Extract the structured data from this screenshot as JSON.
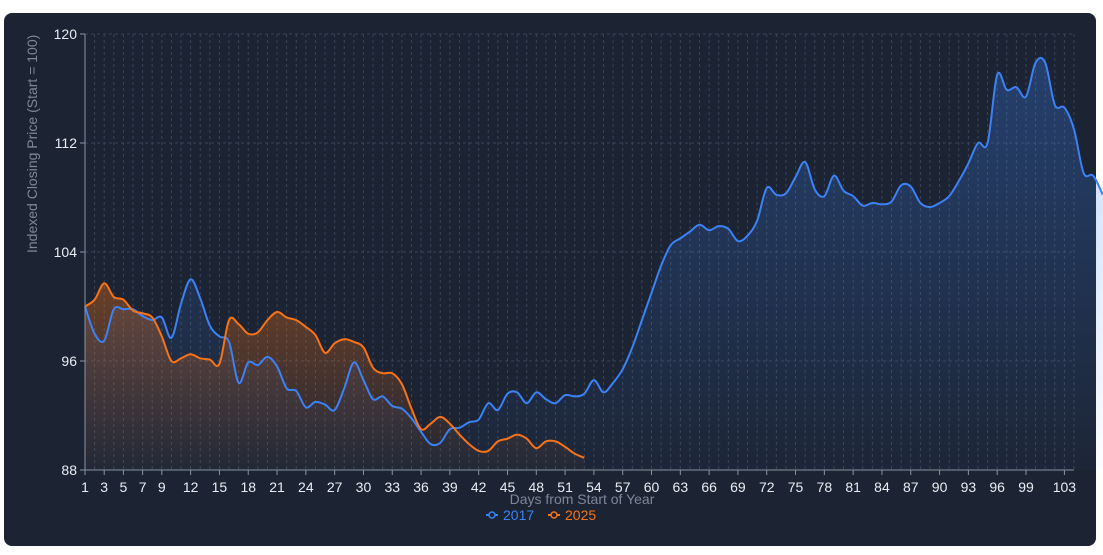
{
  "chart_data": {
    "type": "area",
    "title": "",
    "xlabel": "Days from Start of Year",
    "ylabel": "Indexed Closing Price (Start = 100)",
    "xlim": [
      1,
      104
    ],
    "ylim": [
      88,
      120
    ],
    "x_ticks": [
      "1",
      "3",
      "5",
      "7",
      "9",
      "12",
      "15",
      "18",
      "21",
      "24",
      "27",
      "30",
      "33",
      "36",
      "39",
      "42",
      "45",
      "48",
      "51",
      "54",
      "57",
      "60",
      "63",
      "66",
      "69",
      "72",
      "75",
      "78",
      "81",
      "84",
      "87",
      "90",
      "93",
      "96",
      "99",
      "103"
    ],
    "y_ticks": [
      88,
      96,
      104,
      112,
      120
    ],
    "grid": true,
    "legend": "bottom-center",
    "series": [
      {
        "name": "2017",
        "color": "#3b82f6",
        "values": [
          100.0,
          98.0,
          97.5,
          99.8,
          99.8,
          99.8,
          99.3,
          99.0,
          99.2,
          97.7,
          100.2,
          102.0,
          100.6,
          98.6,
          97.8,
          97.4,
          94.4,
          95.9,
          95.7,
          96.3,
          95.6,
          94.0,
          93.8,
          92.6,
          93.0,
          92.8,
          92.4,
          94.0,
          95.9,
          94.6,
          93.2,
          93.4,
          92.7,
          92.5,
          91.8,
          90.8,
          89.9,
          90.0,
          91.0,
          91.1,
          91.5,
          91.7,
          92.9,
          92.4,
          93.6,
          93.7,
          92.9,
          93.7,
          93.2,
          92.9,
          93.5,
          93.4,
          93.6,
          94.6,
          93.7,
          94.4,
          95.4,
          97.0,
          99.0,
          101.0,
          103.0,
          104.5,
          105.0,
          105.5,
          106.0,
          105.6,
          105.9,
          105.7,
          104.8,
          105.2,
          106.3,
          108.7,
          108.2,
          108.3,
          109.5,
          110.6,
          108.6,
          108.1,
          109.6,
          108.5,
          108.1,
          107.4,
          107.6,
          107.5,
          107.7,
          108.9,
          108.8,
          107.6,
          107.3,
          107.6,
          108.1,
          109.2,
          110.5,
          112.0,
          112.0,
          117.0,
          115.9,
          116.1,
          115.4,
          117.9,
          117.9,
          114.8,
          114.6,
          113.0,
          109.8,
          109.6,
          108.2
        ]
      },
      {
        "name": "2025",
        "color": "#f97316",
        "values": [
          100.0,
          100.5,
          101.7,
          100.7,
          100.5,
          99.7,
          99.5,
          99.2,
          97.8,
          96.0,
          96.2,
          96.5,
          96.2,
          96.1,
          95.8,
          99.0,
          98.7,
          98.0,
          98.1,
          99.0,
          99.6,
          99.2,
          99.0,
          98.5,
          97.9,
          96.6,
          97.3,
          97.6,
          97.4,
          97.0,
          95.5,
          95.1,
          95.1,
          94.3,
          92.5,
          91.0,
          91.4,
          91.9,
          91.4,
          90.6,
          89.9,
          89.4,
          89.4,
          90.1,
          90.3,
          90.6,
          90.3,
          89.6,
          90.1,
          90.1,
          89.7,
          89.2,
          88.9
        ]
      }
    ]
  }
}
